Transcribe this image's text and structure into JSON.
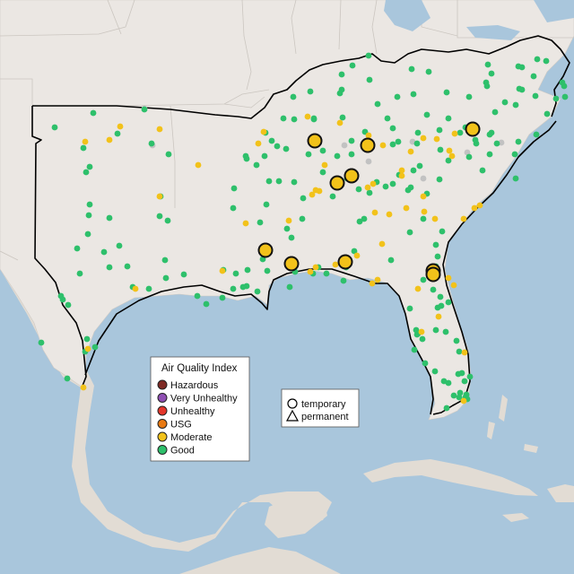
{
  "legend": {
    "title": "Air Quality Index",
    "categories": [
      {
        "label": "Hazardous",
        "color": "#7e2a24"
      },
      {
        "label": "Very Unhealthy",
        "color": "#8f4fb3"
      },
      {
        "label": "Unhealthy",
        "color": "#e3362b"
      },
      {
        "label": "USG",
        "color": "#e97a13"
      },
      {
        "label": "Moderate",
        "color": "#f2c21a"
      },
      {
        "label": "Good",
        "color": "#2ec06b"
      }
    ]
  },
  "shape_legend": {
    "items": [
      {
        "label": "temporary",
        "shape": "circle"
      },
      {
        "label": "permanent",
        "shape": "triangle"
      }
    ]
  },
  "colors": {
    "ocean": "#a9c6dc",
    "land": "#ebe7e3",
    "mexico_land": "#e2dcd4",
    "no_data": "#c2c2c2"
  },
  "stations": {
    "good": [
      [
        61,
        142
      ],
      [
        104,
        126
      ],
      [
        161,
        122
      ],
      [
        131,
        149
      ],
      [
        93,
        165
      ],
      [
        96,
        192
      ],
      [
        100,
        186
      ],
      [
        169,
        160
      ],
      [
        188,
        172
      ],
      [
        100,
        228
      ],
      [
        99,
        240
      ],
      [
        122,
        243
      ],
      [
        178,
        241
      ],
      [
        187,
        246
      ],
      [
        179,
        219
      ],
      [
        98,
        261
      ],
      [
        116,
        281
      ],
      [
        133,
        274
      ],
      [
        86,
        277
      ],
      [
        89,
        305
      ],
      [
        122,
        298
      ],
      [
        142,
        297
      ],
      [
        184,
        290
      ],
      [
        148,
        320
      ],
      [
        166,
        322
      ],
      [
        185,
        310
      ],
      [
        205,
        306
      ],
      [
        220,
        330
      ],
      [
        230,
        339
      ],
      [
        249,
        301
      ],
      [
        263,
        305
      ],
      [
        276,
        301
      ],
      [
        260,
        322
      ],
      [
        275,
        319
      ],
      [
        287,
        325
      ],
      [
        248,
        332
      ],
      [
        68,
        330
      ],
      [
        70,
        334
      ],
      [
        76,
        340
      ],
      [
        46,
        382
      ],
      [
        97,
        378
      ],
      [
        75,
        422
      ],
      [
        95,
        392
      ],
      [
        106,
        387
      ],
      [
        411,
        62
      ],
      [
        393,
        73
      ],
      [
        381,
        83
      ],
      [
        346,
        102
      ],
      [
        327,
        108
      ],
      [
        412,
        89
      ],
      [
        459,
        77
      ],
      [
        478,
        80
      ],
      [
        381,
        100
      ],
      [
        443,
        108
      ],
      [
        461,
        105
      ],
      [
        498,
        103
      ],
      [
        523,
        108
      ],
      [
        582,
        100
      ],
      [
        578,
        74
      ],
      [
        599,
        66
      ],
      [
        609,
        68
      ],
      [
        544,
        72
      ],
      [
        548,
        82
      ],
      [
        543,
        96
      ],
      [
        595,
        85
      ],
      [
        629,
        96
      ],
      [
        620,
        110
      ],
      [
        610,
        127
      ],
      [
        575,
        117
      ],
      [
        563,
        114
      ],
      [
        552,
        125
      ],
      [
        500,
        132
      ],
      [
        490,
        145
      ],
      [
        476,
        128
      ],
      [
        432,
        132
      ],
      [
        438,
        143
      ],
      [
        466,
        148
      ],
      [
        519,
        142
      ],
      [
        548,
        148
      ],
      [
        554,
        160
      ],
      [
        546,
        150
      ],
      [
        578,
        158
      ],
      [
        598,
        150
      ],
      [
        407,
        147
      ],
      [
        392,
        157
      ],
      [
        392,
        172
      ],
      [
        376,
        174
      ],
      [
        360,
        168
      ],
      [
        319,
        166
      ],
      [
        303,
        157
      ],
      [
        296,
        148
      ],
      [
        328,
        133
      ],
      [
        350,
        132
      ],
      [
        382,
        131
      ],
      [
        438,
        161
      ],
      [
        444,
        158
      ],
      [
        465,
        160
      ],
      [
        468,
        185
      ],
      [
        491,
        167
      ],
      [
        500,
        179
      ],
      [
        523,
        175
      ],
      [
        531,
        160
      ],
      [
        538,
        190
      ],
      [
        546,
        172
      ],
      [
        574,
        172
      ],
      [
        575,
        199
      ],
      [
        490,
        200
      ],
      [
        476,
        216
      ],
      [
        420,
        203
      ],
      [
        430,
        208
      ],
      [
        438,
        205
      ],
      [
        400,
        211
      ],
      [
        412,
        215
      ],
      [
        387,
        199
      ],
      [
        371,
        219
      ],
      [
        360,
        192
      ],
      [
        344,
        172
      ],
      [
        328,
        203
      ],
      [
        338,
        221
      ],
      [
        311,
        202
      ],
      [
        295,
        174
      ],
      [
        300,
        202
      ],
      [
        297,
        228
      ],
      [
        290,
        248
      ],
      [
        274,
        174
      ],
      [
        261,
        210
      ],
      [
        260,
        232
      ],
      [
        275,
        177
      ],
      [
        337,
        244
      ],
      [
        320,
        255
      ],
      [
        325,
        265
      ],
      [
        323,
        320
      ],
      [
        329,
        303
      ],
      [
        349,
        305
      ],
      [
        355,
        298
      ],
      [
        364,
        305
      ],
      [
        383,
        313
      ],
      [
        386,
        298
      ],
      [
        401,
        247
      ],
      [
        406,
        244
      ],
      [
        395,
        280
      ],
      [
        436,
        290
      ],
      [
        445,
        195
      ],
      [
        455,
        212
      ],
      [
        457,
        259
      ],
      [
        472,
        244
      ],
      [
        493,
        258
      ],
      [
        486,
        273
      ],
      [
        488,
        286
      ],
      [
        486,
        297
      ],
      [
        472,
        312
      ],
      [
        483,
        323
      ],
      [
        491,
        331
      ],
      [
        500,
        337
      ],
      [
        488,
        343
      ],
      [
        492,
        341
      ],
      [
        486,
        368
      ],
      [
        457,
        344
      ],
      [
        465,
        373
      ],
      [
        462,
        390
      ],
      [
        474,
        405
      ],
      [
        497,
        370
      ],
      [
        509,
        380
      ],
      [
        512,
        392
      ],
      [
        515,
        416
      ],
      [
        518,
        425
      ],
      [
        520,
        440
      ],
      [
        512,
        443
      ],
      [
        506,
        441
      ],
      [
        498,
        455
      ],
      [
        495,
        425
      ],
      [
        511,
        417
      ],
      [
        513,
        438
      ],
      [
        500,
        427
      ],
      [
        485,
        414
      ],
      [
        464,
        368
      ],
      [
        471,
        378
      ],
      [
        466,
        372
      ],
      [
        519,
        443
      ],
      [
        521,
        445
      ],
      [
        524,
        420
      ],
      [
        582,
        75
      ],
      [
        597,
        107
      ],
      [
        627,
        92
      ],
      [
        630,
        108
      ],
      [
        542,
        92
      ],
      [
        579,
        99
      ],
      [
        513,
        148
      ],
      [
        421,
        116
      ],
      [
        379,
        104
      ],
      [
        316,
        132
      ],
      [
        309,
        163
      ],
      [
        286,
        184
      ],
      [
        293,
        289
      ],
      [
        301,
        279
      ],
      [
        298,
        302
      ],
      [
        271,
        320
      ],
      [
        350,
        133
      ],
      [
        458,
        209
      ],
      [
        461,
        190
      ],
      [
        530,
        156
      ]
    ],
    "moderate": [
      [
        134,
        141
      ],
      [
        178,
        144
      ],
      [
        95,
        158
      ],
      [
        122,
        156
      ],
      [
        221,
        184
      ],
      [
        178,
        219
      ],
      [
        294,
        147
      ],
      [
        288,
        160
      ],
      [
        343,
        130
      ],
      [
        362,
        184
      ],
      [
        348,
        217
      ],
      [
        356,
        213
      ],
      [
        352,
        212
      ],
      [
        379,
        137
      ],
      [
        411,
        151
      ],
      [
        427,
        162
      ],
      [
        458,
        169
      ],
      [
        472,
        154
      ],
      [
        487,
        155
      ],
      [
        507,
        149
      ],
      [
        501,
        168
      ],
      [
        504,
        174
      ],
      [
        410,
        209
      ],
      [
        416,
        205
      ],
      [
        434,
        239
      ],
      [
        453,
        232
      ],
      [
        473,
        236
      ],
      [
        485,
        244
      ],
      [
        517,
        244
      ],
      [
        529,
        232
      ],
      [
        535,
        229
      ],
      [
        418,
        237
      ],
      [
        426,
        272
      ],
      [
        398,
        285
      ],
      [
        415,
        316
      ],
      [
        421,
        312
      ],
      [
        374,
        295
      ],
      [
        352,
        298
      ],
      [
        346,
        303
      ],
      [
        448,
        190
      ],
      [
        472,
        219
      ],
      [
        274,
        249
      ],
      [
        248,
        302
      ],
      [
        151,
        322
      ],
      [
        93,
        432
      ],
      [
        98,
        389
      ],
      [
        466,
        322
      ],
      [
        489,
        353
      ],
      [
        470,
        370
      ],
      [
        506,
        318
      ],
      [
        500,
        310
      ],
      [
        518,
        393
      ],
      [
        517,
        447
      ],
      [
        448,
        196
      ],
      [
        322,
        246
      ]
    ],
    "no_data": [
      [
        161,
        121
      ],
      [
        170,
        162
      ],
      [
        460,
        158
      ],
      [
        559,
        159
      ],
      [
        521,
        170
      ],
      [
        472,
        199
      ],
      [
        384,
        162
      ],
      [
        411,
        180
      ]
    ],
    "temporary_moderate": [
      [
        351,
        157
      ],
      [
        410,
        162
      ],
      [
        527,
        144
      ],
      [
        376,
        204
      ],
      [
        392,
        196
      ],
      [
        296,
        279
      ],
      [
        325,
        294
      ],
      [
        385,
        292
      ],
      [
        483,
        302
      ],
      [
        483,
        306
      ]
    ]
  }
}
